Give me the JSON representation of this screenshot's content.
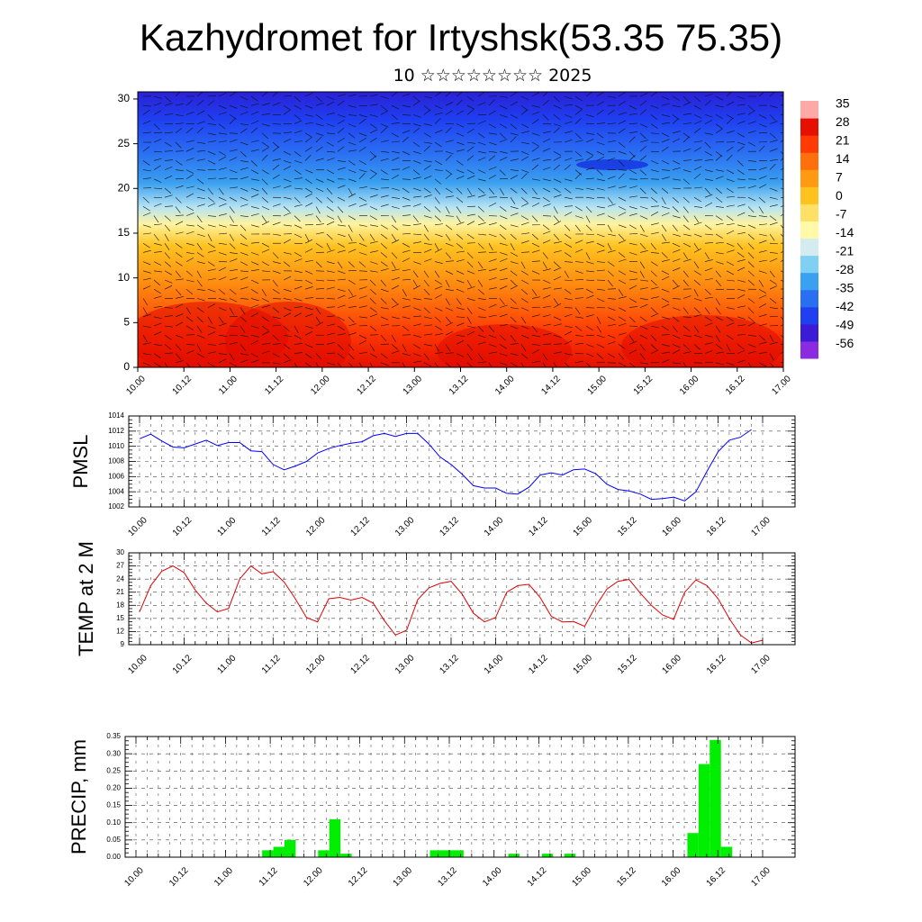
{
  "title": "Kazhydromet for Irtyshsk(53.35 75.35)",
  "subtitle": "10 ☆☆☆☆☆☆☆☆ 2025",
  "chart_data": [
    {
      "type": "heatmap",
      "title": "Kazhydromet for Irtyshsk(53.35 75.35)",
      "subtitle": "10 ☆☆☆☆☆☆☆☆ 2025",
      "x_ticks": [
        "10.00",
        "10.12",
        "11.00",
        "11.12",
        "12.00",
        "12.12",
        "13.00",
        "13.12",
        "14.00",
        "14.12",
        "15.00",
        "15.12",
        "16.00",
        "16.12",
        "17.00"
      ],
      "y_ticks": [
        "0",
        "5",
        "10",
        "15",
        "20",
        "25",
        "30"
      ],
      "ylim": [
        0,
        30.8
      ],
      "colorbar_labels": [
        "35",
        "28",
        "21",
        "14",
        "7",
        "0",
        "-7",
        "-14",
        "-21",
        "-28",
        "-35",
        "-42",
        "-49",
        "-56"
      ],
      "colorbar_colors": [
        "#8a2be2",
        "#3b1bd6",
        "#1f3ff0",
        "#2a6ef2",
        "#3aa0f0",
        "#7fd0f2",
        "#d4ecf0",
        "#fff9a8",
        "#ffe066",
        "#ffc21f",
        "#ff9a12",
        "#ff6f0c",
        "#ff3a05",
        "#e51000",
        "#ffa8a8"
      ],
      "grid": false,
      "legend": "right"
    },
    {
      "type": "line",
      "ylabel": "PMSL",
      "ylim": [
        1002,
        1014
      ],
      "y_ticks": [
        "1002",
        "1004",
        "1006",
        "1008",
        "1010",
        "1012",
        "1014"
      ],
      "x_ticks": [
        "10.00",
        "10.12",
        "11.00",
        "11.12",
        "12.00",
        "12.12",
        "13.00",
        "13.12",
        "14.00",
        "14.12",
        "15.00",
        "15.12",
        "16.00",
        "16.12",
        "17.00"
      ],
      "color": "#0000ff",
      "grid": true,
      "values": [
        1011.0,
        1011.6,
        1010.7,
        1009.9,
        1009.8,
        1010.3,
        1010.8,
        1010.1,
        1010.5,
        1010.5,
        1009.4,
        1009.3,
        1007.6,
        1006.9,
        1007.4,
        1008.0,
        1009.1,
        1009.7,
        1010.1,
        1010.4,
        1010.6,
        1011.4,
        1011.7,
        1011.3,
        1011.7,
        1011.7,
        1010.3,
        1008.6,
        1007.6,
        1006.3,
        1004.8,
        1004.5,
        1004.5,
        1003.8,
        1003.7,
        1004.6,
        1006.2,
        1006.5,
        1006.2,
        1006.9,
        1007.0,
        1006.4,
        1005.0,
        1004.3,
        1004.1,
        1003.7,
        1003.0,
        1003.1,
        1003.3,
        1002.8,
        1004.0,
        1006.7,
        1009.3,
        1010.8,
        1011.2,
        1012.2
      ]
    },
    {
      "type": "line",
      "ylabel": "TEMP at 2 M",
      "ylim": [
        9,
        30
      ],
      "y_ticks": [
        "9",
        "12",
        "15",
        "18",
        "21",
        "24",
        "27",
        "30"
      ],
      "x_ticks": [
        "10.00",
        "10.12",
        "11.00",
        "11.12",
        "12.00",
        "12.12",
        "13.00",
        "13.12",
        "14.00",
        "14.12",
        "15.00",
        "15.12",
        "16.00",
        "16.12",
        "17.00"
      ],
      "color": "#e00000",
      "grid": true,
      "values": [
        16.5,
        22.5,
        25.8,
        27.0,
        25.5,
        21.5,
        18.5,
        16.5,
        17.3,
        24.0,
        27.0,
        25.2,
        25.7,
        23.3,
        19.5,
        15.2,
        14.2,
        19.5,
        19.8,
        19.2,
        19.8,
        18.5,
        14.5,
        11.2,
        12.3,
        19.3,
        22.0,
        23.0,
        23.5,
        20.5,
        16.2,
        14.2,
        15.2,
        21.0,
        22.5,
        22.8,
        19.8,
        15.5,
        14.2,
        14.3,
        13.2,
        17.8,
        21.7,
        23.5,
        23.9,
        20.8,
        18.0,
        15.8,
        14.8,
        21.0,
        23.8,
        22.5,
        19.5,
        15.0,
        11.2,
        9.4,
        10.0
      ]
    },
    {
      "type": "bar",
      "ylabel": "PRECIP, mm",
      "ylim": [
        0,
        0.35
      ],
      "y_ticks": [
        "0.00",
        "0.05",
        "0.10",
        "0.15",
        "0.20",
        "0.25",
        "0.30",
        "0.35"
      ],
      "x_ticks": [
        "10.00",
        "10.12",
        "11.00",
        "11.12",
        "12.00",
        "12.12",
        "13.00",
        "13.12",
        "14.00",
        "14.12",
        "15.00",
        "15.12",
        "16.00",
        "16.12",
        "17.00"
      ],
      "color": "#00ee00",
      "grid": true,
      "values": [
        0,
        0,
        0,
        0,
        0,
        0,
        0,
        0,
        0,
        0,
        0,
        0,
        0.02,
        0.03,
        0.05,
        0,
        0,
        0.02,
        0.11,
        0.01,
        0,
        0,
        0,
        0,
        0,
        0,
        0,
        0.02,
        0.02,
        0.02,
        0,
        0,
        0,
        0,
        0.01,
        0,
        0,
        0.01,
        0,
        0.01,
        0,
        0,
        0,
        0,
        0,
        0,
        0,
        0,
        0,
        0,
        0.07,
        0.27,
        0.34,
        0.03,
        0,
        0
      ]
    }
  ]
}
